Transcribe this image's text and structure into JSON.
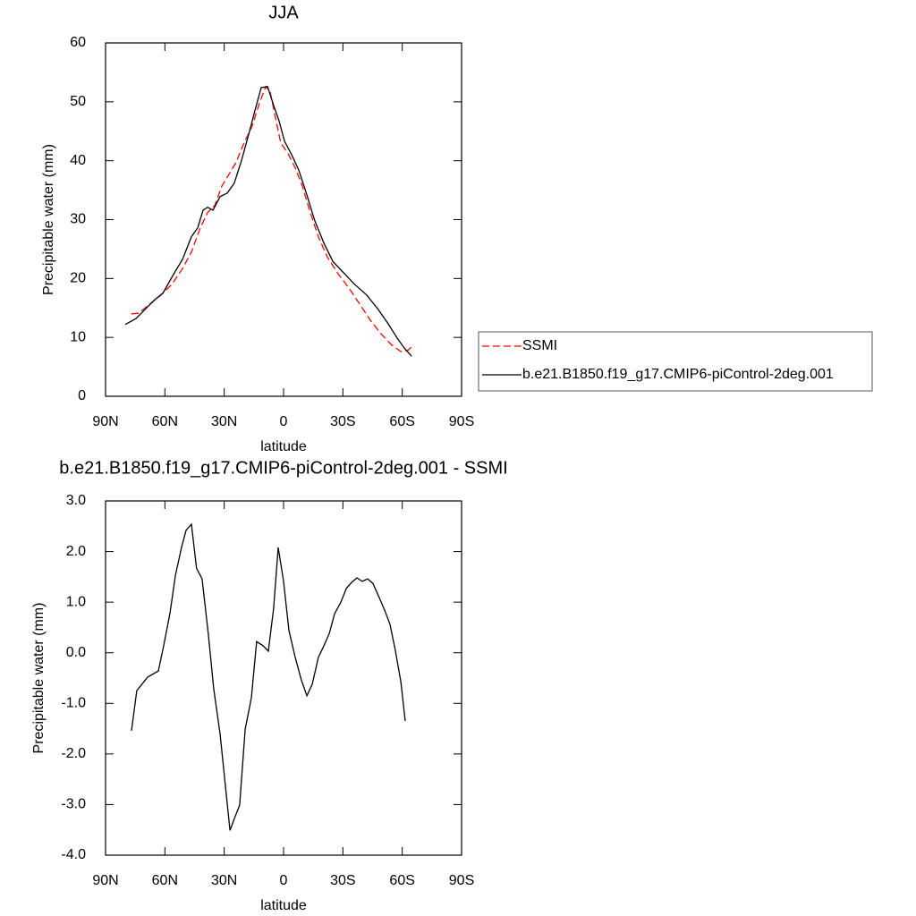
{
  "chart_data": [
    {
      "type": "line",
      "title": "JJA",
      "xlabel": "latitude",
      "ylabel": "Precipitable water (mm)",
      "xlim": [
        90,
        -90
      ],
      "xticks": [
        {
          "value": 90,
          "label": "90N"
        },
        {
          "value": 60,
          "label": "60N"
        },
        {
          "value": 30,
          "label": "30N"
        },
        0,
        {
          "value": -30,
          "label": "30S"
        },
        {
          "value": -60,
          "label": "60S"
        },
        {
          "value": -90,
          "label": "90S"
        }
      ],
      "ylim": [
        0,
        60
      ],
      "yticks": [
        0,
        10,
        20,
        30,
        40,
        50,
        60
      ],
      "series": [
        {
          "name": "SSMI",
          "color": "#ff0000",
          "dash": "dashed",
          "x": [
            76.9,
            73.3,
            68.3,
            62,
            56.5,
            51,
            46.6,
            42.1,
            38.4,
            34.8,
            31.2,
            27.6,
            24,
            20.4,
            15.8,
            12.2,
            9,
            6.8,
            4.1,
            1.4,
            -2.3,
            -5.9,
            -9.5,
            -13.1,
            -17.6,
            -22.2,
            -27.6,
            -33,
            -38.4,
            -43.9,
            -49.3,
            -54.7,
            -59.3,
            -62.9,
            -65.6
          ],
          "values": [
            14.0,
            14.1,
            15.5,
            17.2,
            19.0,
            21.7,
            24.5,
            28.6,
            31.2,
            32.4,
            35.7,
            37.7,
            39.7,
            42.7,
            46.0,
            49.8,
            52.6,
            51.7,
            47.3,
            43.0,
            41.2,
            38.8,
            35.7,
            31.6,
            27.1,
            23.6,
            20.8,
            18.4,
            15.7,
            12.9,
            10.6,
            8.7,
            7.6,
            7.8,
            8.7
          ]
        },
        {
          "name": "b.e21.B1850.f19_g17.CMIP6-piControl-2deg.001",
          "color": "#000000",
          "dash": "solid",
          "x": [
            80,
            74.6,
            69.6,
            65.1,
            61,
            56.5,
            51,
            46.6,
            43.4,
            40.7,
            38.4,
            35.7,
            32.1,
            28.5,
            24.9,
            21.3,
            17.6,
            14,
            11.3,
            8.1,
            5,
            2.3,
            -0.5,
            -4.1,
            -7.7,
            -11.3,
            -15.8,
            -20.4,
            -24.9,
            -30.3,
            -35.7,
            -42,
            -47.5,
            -52.9,
            -57.4,
            -61,
            -64.7
          ],
          "values": [
            12.2,
            13.2,
            14.9,
            16.4,
            17.5,
            20.2,
            23.3,
            27.1,
            28.6,
            31.6,
            32.1,
            31.6,
            33.9,
            34.5,
            36.2,
            40.0,
            44.5,
            49.1,
            52.4,
            52.6,
            49.4,
            46.8,
            43.3,
            41.0,
            38.4,
            34.7,
            29.8,
            26.0,
            22.9,
            21.0,
            19.1,
            17.2,
            14.9,
            12.3,
            9.9,
            8.2,
            6.8
          ]
        }
      ]
    },
    {
      "type": "line",
      "title": "b.e21.B1850.f19_g17.CMIP6-piControl-2deg.001 - SSMI",
      "xlabel": "latitude",
      "ylabel": "Precipitable water (mm)",
      "xlim": [
        90,
        -90
      ],
      "xticks": [
        {
          "value": 90,
          "label": "90N"
        },
        {
          "value": 60,
          "label": "60N"
        },
        {
          "value": 30,
          "label": "30N"
        },
        0,
        {
          "value": -30,
          "label": "30S"
        },
        {
          "value": -60,
          "label": "60S"
        },
        {
          "value": -90,
          "label": "90S"
        }
      ],
      "ylim": [
        -4,
        3
      ],
      "yticks": [
        {
          "value": -4,
          "label": "-4.0"
        },
        {
          "value": -3,
          "label": "-3.0"
        },
        {
          "value": -2,
          "label": "-2.0"
        },
        {
          "value": -1,
          "label": "-1.0"
        },
        {
          "value": 0,
          "label": "0.0"
        },
        {
          "value": 1,
          "label": "1.0"
        },
        {
          "value": 2,
          "label": "2.0"
        },
        {
          "value": 3,
          "label": "3.0"
        }
      ],
      "series": [
        {
          "color": "#000000",
          "dash": "solid",
          "x": [
            76.9,
            74.2,
            68.7,
            63.3,
            60.6,
            57.4,
            54.7,
            51.6,
            49.3,
            46.6,
            44,
            41.2,
            38,
            35.3,
            32.1,
            29.8,
            27.1,
            24.9,
            22.2,
            19.4,
            16.3,
            13.6,
            10.4,
            7.7,
            5,
            2.7,
            0,
            -2.7,
            -5.9,
            -9,
            -11.8,
            -14.5,
            -17.6,
            -20.4,
            -23.1,
            -25.8,
            -29,
            -31.7,
            -34.4,
            -37.1,
            -39.8,
            -42.5,
            -45.2,
            -48.4,
            -51.1,
            -53.8,
            -56.5,
            -59.3,
            -61.5
          ],
          "values": [
            -1.54,
            -0.75,
            -0.48,
            -0.36,
            0.14,
            0.79,
            1.53,
            2.08,
            2.42,
            2.54,
            1.67,
            1.46,
            0.35,
            -0.71,
            -1.6,
            -2.48,
            -3.51,
            -3.28,
            -3.01,
            -1.51,
            -0.89,
            0.22,
            0.14,
            0.03,
            0.88,
            2.08,
            1.41,
            0.44,
            -0.09,
            -0.54,
            -0.85,
            -0.62,
            -0.09,
            0.14,
            0.38,
            0.77,
            1.0,
            1.27,
            1.39,
            1.48,
            1.41,
            1.46,
            1.37,
            1.09,
            0.84,
            0.56,
            0.05,
            -0.57,
            -1.35
          ]
        }
      ]
    }
  ]
}
